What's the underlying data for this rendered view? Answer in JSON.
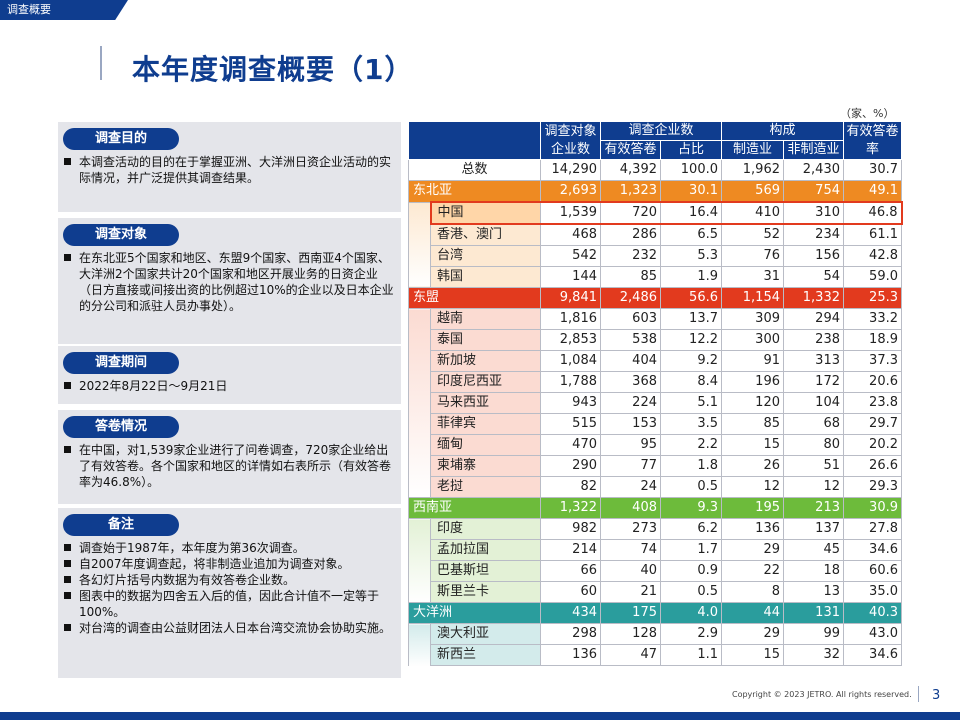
{
  "header": {
    "tag": "调查概要",
    "title": "本年度调查概要（1）"
  },
  "unit_note": "（家、%）",
  "left": {
    "purpose": {
      "label": "调查目的",
      "items": [
        "本调查活动的目的在于掌握亚洲、大洋洲日资企业活动的实际情况，并广泛提供其调查结果。"
      ]
    },
    "target": {
      "label": "调查对象",
      "items": [
        "在东北亚5个国家和地区、东盟9个国家、西南亚4个国家、大洋洲2个国家共计20个国家和地区开展业务的日资企业（日方直接或间接出资的比例超过10%的企业以及日本企业的分公司和派驻人员办事处）。"
      ]
    },
    "period": {
      "label": "调查期间",
      "items": [
        "2022年8月22日～9月21日"
      ]
    },
    "answers": {
      "label": "答卷情况",
      "items": [
        "在中国，对1,539家企业进行了问卷调查，720家企业给出了有效答卷。各个国家和地区的详情如右表所示（有效答卷率为46.8%）。"
      ]
    },
    "notes": {
      "label": "备注",
      "items": [
        "调查始于1987年，本年度为第36次调查。",
        "自2007年度调查起，将非制造业追加为调查对象。",
        "各幻灯片括号内数据为有效答卷企业数。",
        "图表中的数据为四舍五入后的值，因此合计值不一定等于100%。",
        "对台湾的调查由公益财团法人日本台湾交流协会协助实施。"
      ]
    }
  },
  "table": {
    "headers": {
      "targets": "调查对象企业数",
      "surveyed": "调查企业数",
      "valid": "有效答卷",
      "share": "占比",
      "composition": "构成",
      "mfg": "制造业",
      "nonmfg": "非制造业",
      "rate": "有效答卷率"
    },
    "total": {
      "name": "总数",
      "values": [
        "14,290",
        "4,392",
        "100.0",
        "1,962",
        "2,430",
        "30.7"
      ]
    },
    "regions": [
      {
        "name": "东北亚",
        "color": "#ee8a22",
        "light": "#fde9d2",
        "highlight": "#ffd6a8",
        "values": [
          "2,693",
          "1,323",
          "30.1",
          "569",
          "754",
          "49.1"
        ],
        "rows": [
          {
            "name": "中国",
            "values": [
              "1,539",
              "720",
              "16.4",
              "410",
              "310",
              "46.8"
            ],
            "highlight": true
          },
          {
            "name": "香港、澳门",
            "values": [
              "468",
              "286",
              "6.5",
              "52",
              "234",
              "61.1"
            ]
          },
          {
            "name": "台湾",
            "values": [
              "542",
              "232",
              "5.3",
              "76",
              "156",
              "42.8"
            ]
          },
          {
            "name": "韩国",
            "values": [
              "144",
              "85",
              "1.9",
              "31",
              "54",
              "59.0"
            ]
          }
        ]
      },
      {
        "name": "东盟",
        "color": "#e23a1e",
        "light": "#fbdbd2",
        "values": [
          "9,841",
          "2,486",
          "56.6",
          "1,154",
          "1,332",
          "25.3"
        ],
        "rows": [
          {
            "name": "越南",
            "values": [
              "1,816",
              "603",
              "13.7",
              "309",
              "294",
              "33.2"
            ]
          },
          {
            "name": "泰国",
            "values": [
              "2,853",
              "538",
              "12.2",
              "300",
              "238",
              "18.9"
            ]
          },
          {
            "name": "新加坡",
            "values": [
              "1,084",
              "404",
              "9.2",
              "91",
              "313",
              "37.3"
            ]
          },
          {
            "name": "印度尼西亚",
            "values": [
              "1,788",
              "368",
              "8.4",
              "196",
              "172",
              "20.6"
            ]
          },
          {
            "name": "马来西亚",
            "values": [
              "943",
              "224",
              "5.1",
              "120",
              "104",
              "23.8"
            ]
          },
          {
            "name": "菲律宾",
            "values": [
              "515",
              "153",
              "3.5",
              "85",
              "68",
              "29.7"
            ]
          },
          {
            "name": "缅甸",
            "values": [
              "470",
              "95",
              "2.2",
              "15",
              "80",
              "20.2"
            ]
          },
          {
            "name": "柬埔寨",
            "values": [
              "290",
              "77",
              "1.8",
              "26",
              "51",
              "26.6"
            ]
          },
          {
            "name": "老挝",
            "values": [
              "82",
              "24",
              "0.5",
              "12",
              "12",
              "29.3"
            ]
          }
        ]
      },
      {
        "name": "西南亚",
        "color": "#6dbb3b",
        "light": "#e3f1d6",
        "values": [
          "1,322",
          "408",
          "9.3",
          "195",
          "213",
          "30.9"
        ],
        "rows": [
          {
            "name": "印度",
            "values": [
              "982",
              "273",
              "6.2",
              "136",
              "137",
              "27.8"
            ]
          },
          {
            "name": "孟加拉国",
            "values": [
              "214",
              "74",
              "1.7",
              "29",
              "45",
              "34.6"
            ]
          },
          {
            "name": "巴基斯坦",
            "values": [
              "66",
              "40",
              "0.9",
              "22",
              "18",
              "60.6"
            ]
          },
          {
            "name": "斯里兰卡",
            "values": [
              "60",
              "21",
              "0.5",
              "8",
              "13",
              "35.0"
            ]
          }
        ]
      },
      {
        "name": "大洋洲",
        "color": "#2a9d9d",
        "light": "#d3ebeb",
        "values": [
          "434",
          "175",
          "4.0",
          "44",
          "131",
          "40.3"
        ],
        "rows": [
          {
            "name": "澳大利亚",
            "values": [
              "298",
              "128",
              "2.9",
              "29",
              "99",
              "43.0"
            ]
          },
          {
            "name": "新西兰",
            "values": [
              "136",
              "47",
              "1.1",
              "15",
              "32",
              "34.6"
            ]
          }
        ]
      }
    ]
  },
  "footer": {
    "copyright": "Copyright © 2023 JETRO. All rights reserved.",
    "page": "3"
  },
  "colors": {
    "primary": "#0f3d8f",
    "highlight_border": "#e23a1e"
  }
}
